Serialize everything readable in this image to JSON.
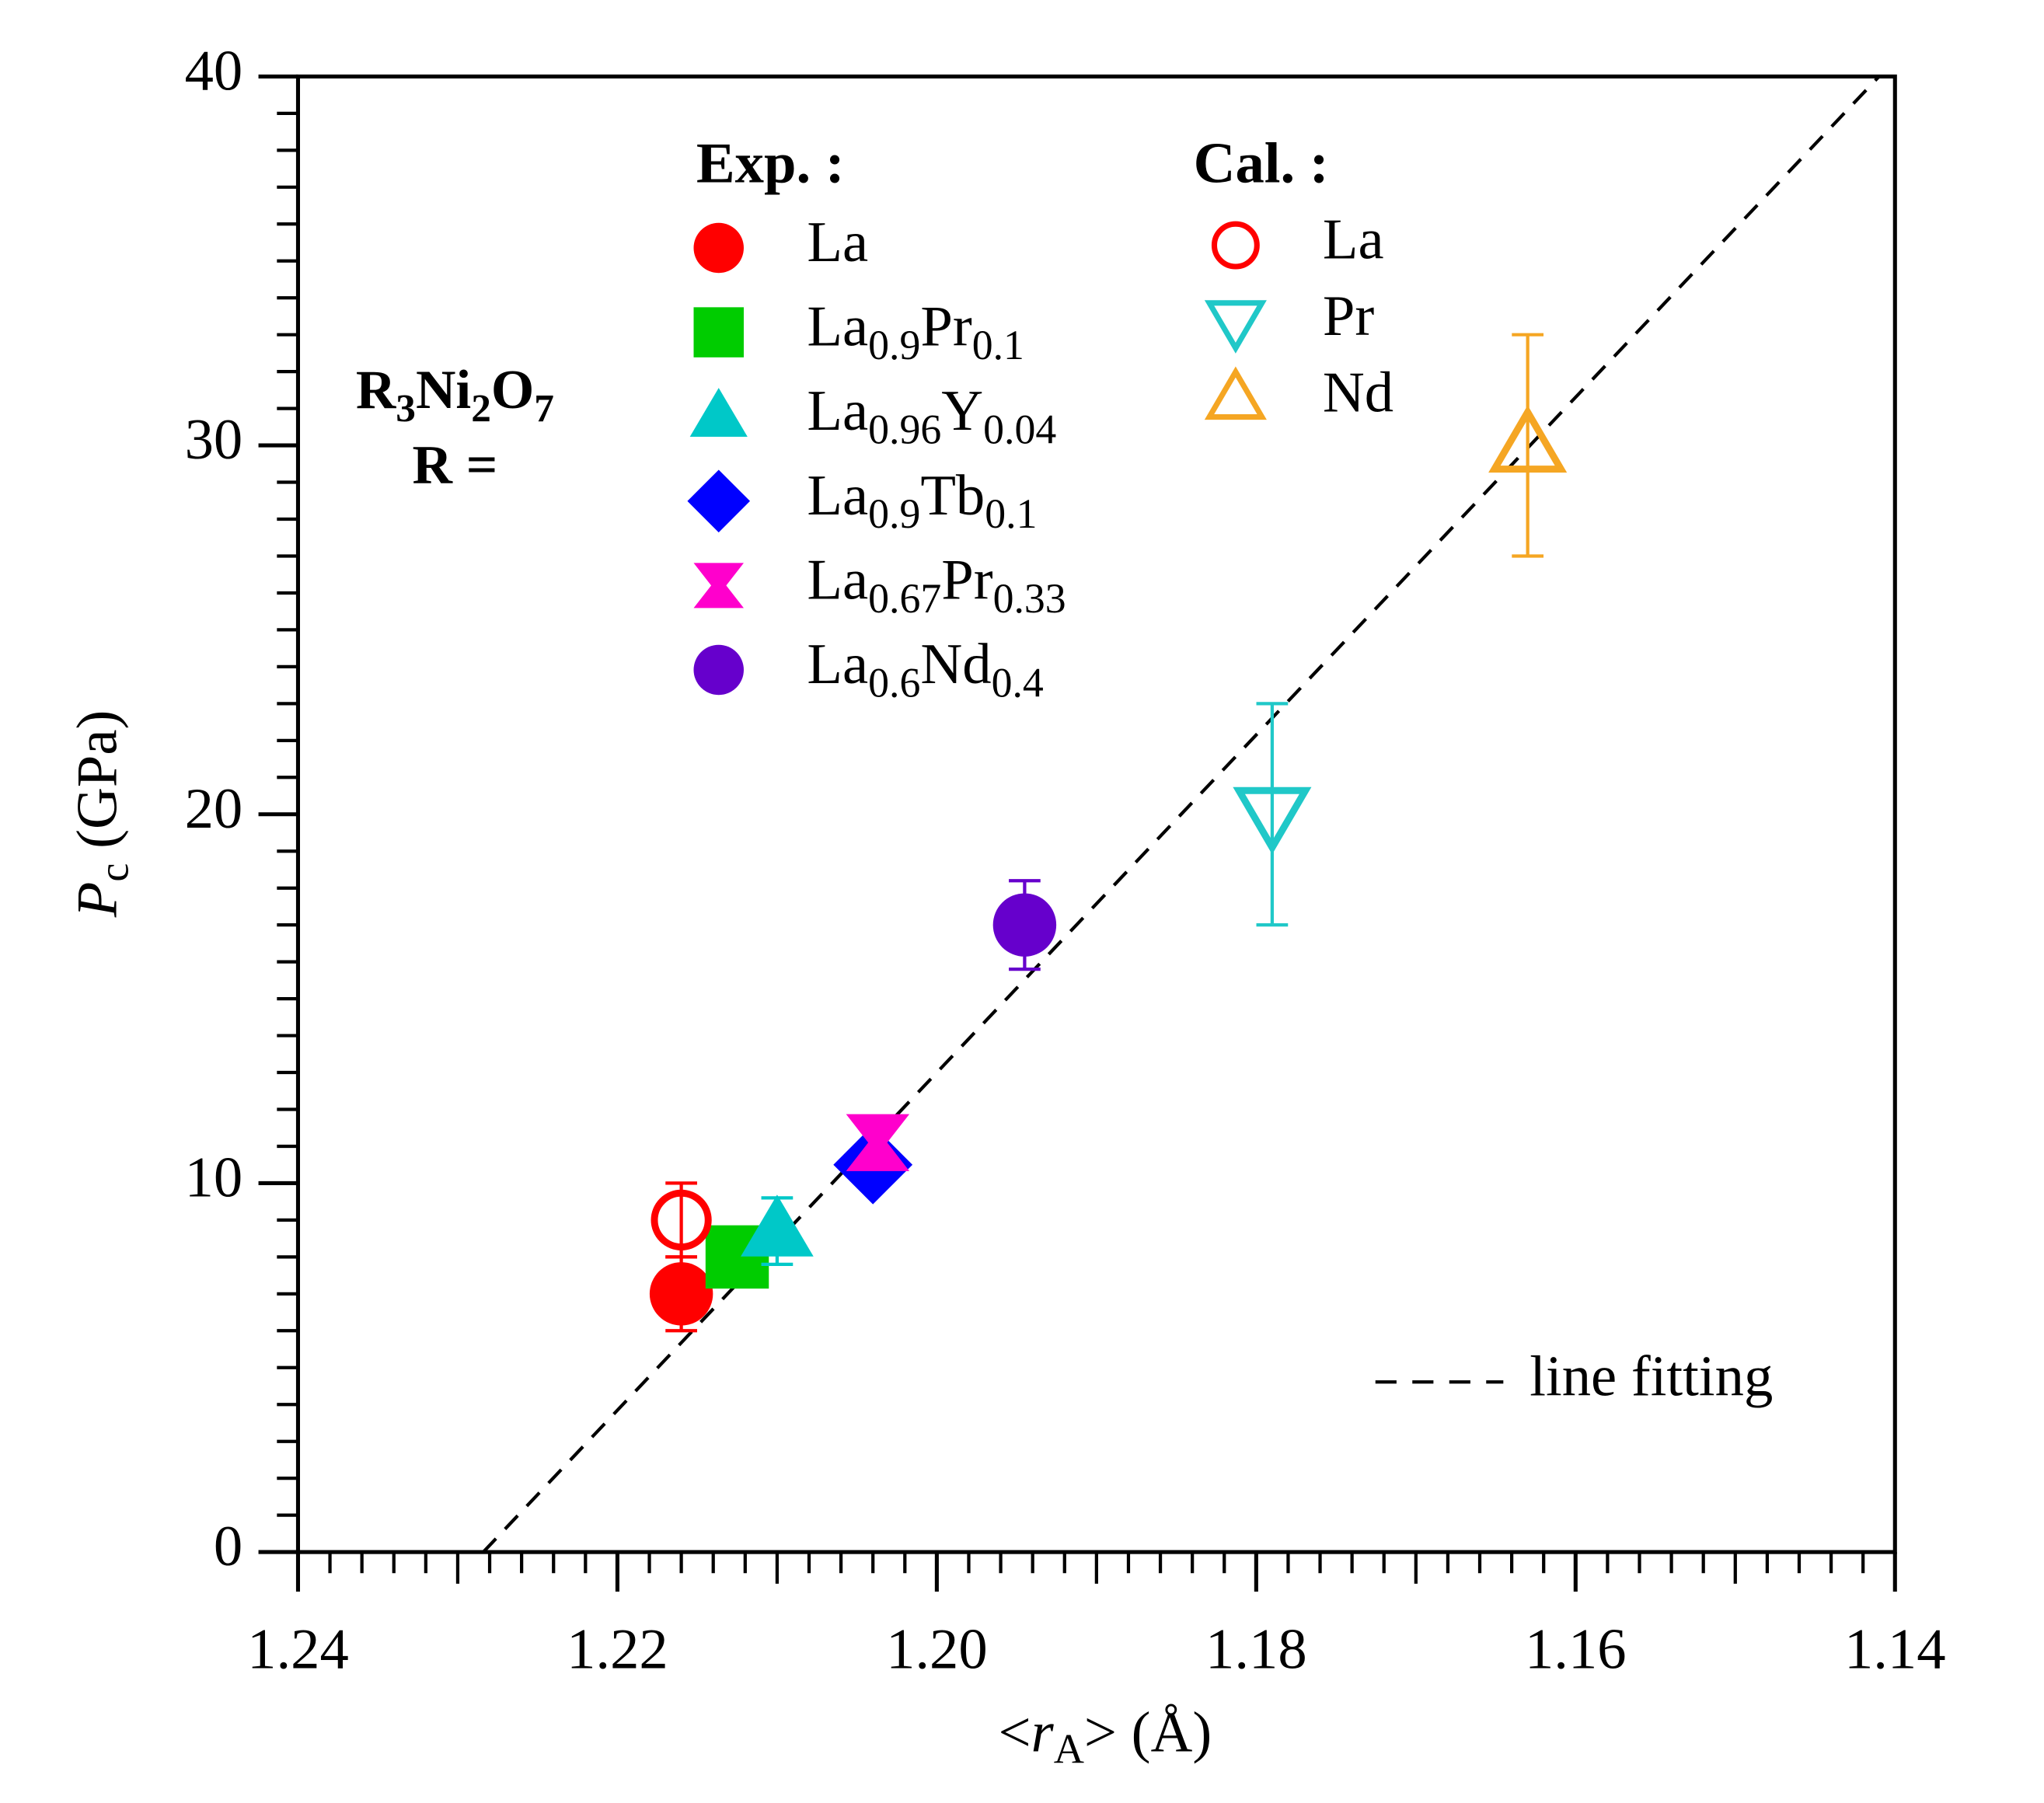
{
  "chart_data": {
    "type": "scatter",
    "x_label": "<rA> (Å)",
    "y_label": "Pc (GPa)",
    "xlim": [
      1.24,
      1.14
    ],
    "ylim": [
      0,
      40
    ],
    "xticks": [
      1.24,
      1.22,
      {
        "value": 1.2,
        "label": "1.20"
      },
      1.18,
      1.16,
      1.14
    ],
    "yticks": [
      0,
      10,
      20,
      30,
      40
    ],
    "xminorticks": [
      1.238,
      1.236,
      1.234,
      1.232,
      1.23,
      1.228,
      1.226,
      1.224,
      1.222,
      1.218,
      1.216,
      1.214,
      1.212,
      1.21,
      1.208,
      1.206,
      1.204,
      1.202,
      1.198,
      1.196,
      1.194,
      1.192,
      1.19,
      1.188,
      1.186,
      1.184,
      1.182,
      1.178,
      1.176,
      1.174,
      1.172,
      1.17,
      1.168,
      1.166,
      1.164,
      1.162,
      1.158,
      1.156,
      1.154,
      1.152,
      1.15,
      1.148,
      1.146,
      1.144,
      1.142
    ],
    "yminorticks": [
      1,
      2,
      3,
      4,
      5,
      6,
      7,
      8,
      9,
      11,
      12,
      13,
      14,
      15,
      16,
      17,
      18,
      19,
      21,
      22,
      23,
      24,
      25,
      26,
      27,
      28,
      29,
      31,
      32,
      33,
      34,
      35,
      36,
      37,
      38,
      39
    ],
    "annotations": [
      "R3Ni2O7",
      "R ="
    ],
    "groups": [
      {
        "title": "Exp. :",
        "series": [
          {
            "name": "La",
            "marker": "circle",
            "color": "#ff0000",
            "x": [
              1.216
            ],
            "y": [
              7
            ],
            "error": [
              1
            ]
          },
          {
            "name": "La0.9Pr0.1",
            "marker": "square",
            "color": "#00cc00",
            "x": [
              1.2125
            ],
            "y": [
              8
            ]
          },
          {
            "name": "La0.96Y0.04",
            "marker": "triangle",
            "color": "#00c8c8",
            "x": [
              1.21
            ],
            "y": [
              8.7
            ],
            "error": [
              0.9
            ]
          },
          {
            "name": "La0.9Tb0.1",
            "marker": "diamond",
            "color": "#0000ff",
            "x": [
              1.204
            ],
            "y": [
              10.5
            ]
          },
          {
            "name": "La0.67Pr0.33",
            "marker": "bowtie",
            "color": "#ff00cc",
            "x": [
              1.2037
            ],
            "y": [
              11.1
            ]
          },
          {
            "name": "La0.6Nd0.4",
            "marker": "circle",
            "color": "#6600cc",
            "x": [
              1.1945
            ],
            "y": [
              17
            ],
            "error": [
              1.2
            ]
          }
        ]
      },
      {
        "title": "Cal. :",
        "series": [
          {
            "name": "La",
            "marker": "circle-open",
            "color": "#ff0000",
            "x": [
              1.216
            ],
            "y": [
              9
            ],
            "error": [
              1
            ]
          },
          {
            "name": "Pr",
            "marker": "triangle-down-open",
            "color": "#20c8c8",
            "x": [
              1.179
            ],
            "y": [
              20
            ],
            "error": [
              3
            ]
          },
          {
            "name": "Nd",
            "marker": "triangle-open",
            "color": "#f5a623",
            "x": [
              1.163
            ],
            "y": [
              30
            ],
            "error": [
              3
            ]
          }
        ]
      }
    ],
    "fit": {
      "name": "line fitting",
      "color": "#000000",
      "x": [
        1.2284,
        1.141
      ],
      "y": [
        0,
        40
      ]
    }
  }
}
